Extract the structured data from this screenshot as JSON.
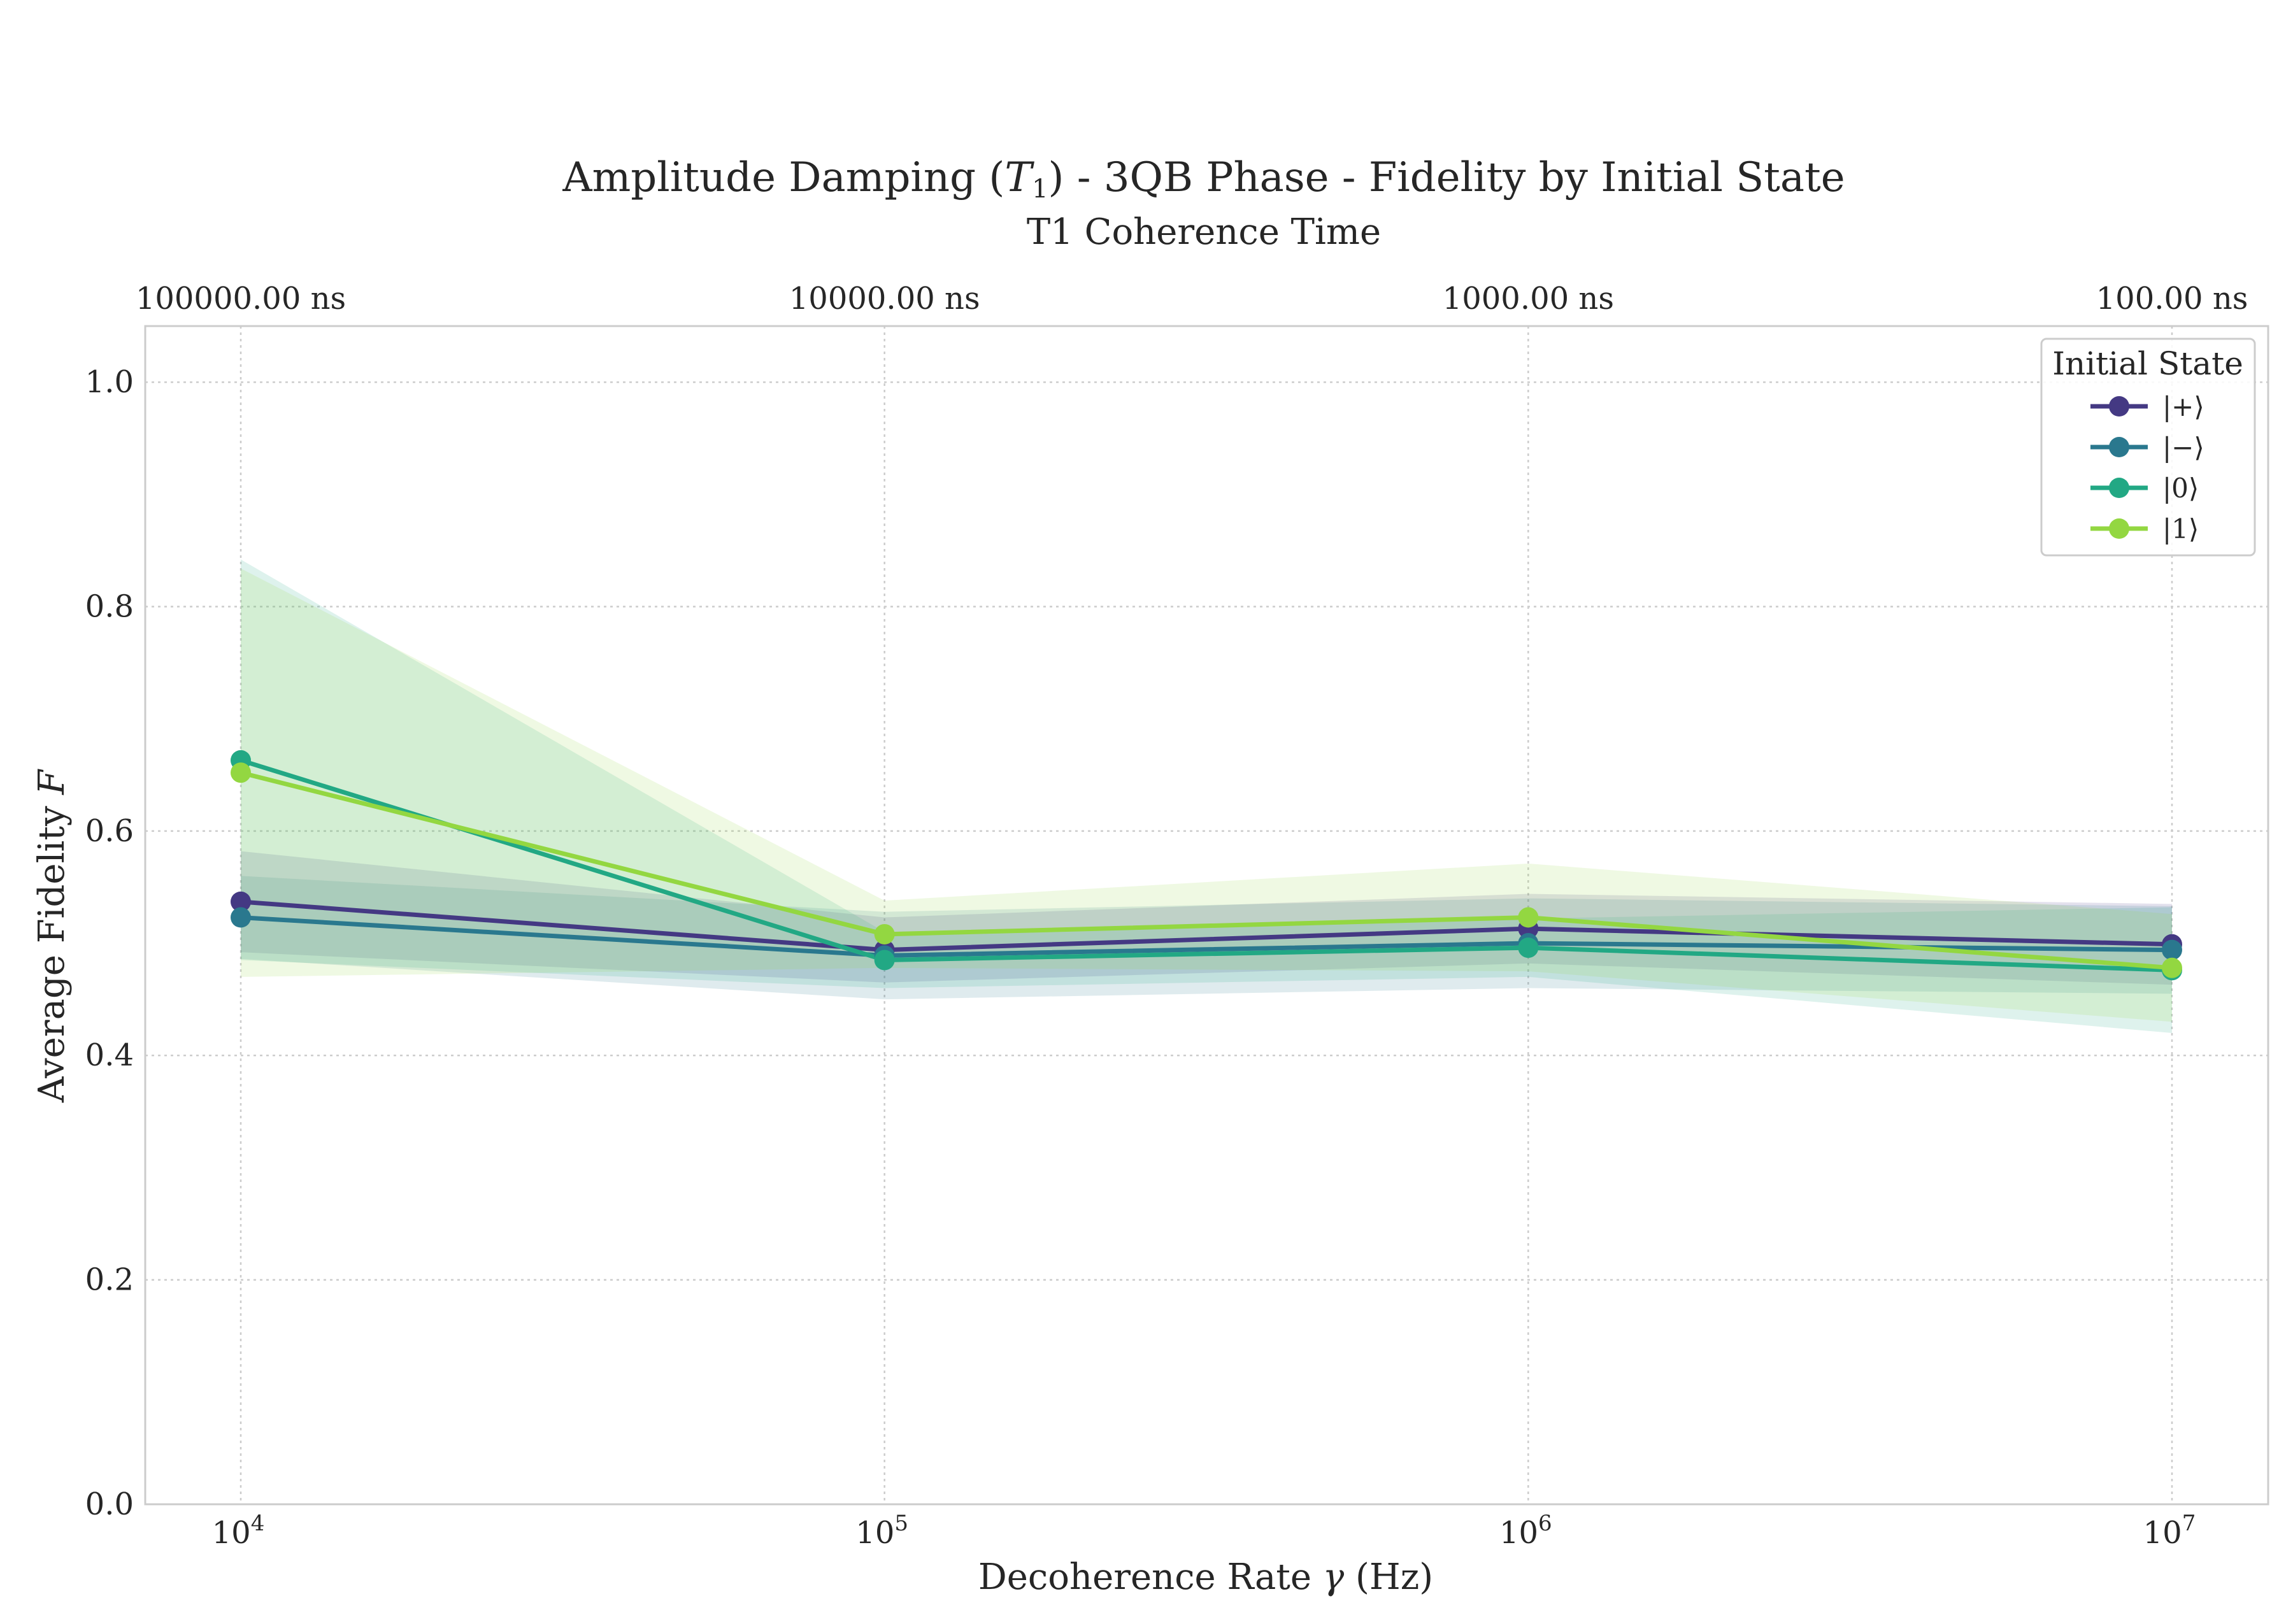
{
  "chart_data": {
    "type": "line",
    "title_main": "Amplitude Damping (",
    "title_sym": "T",
    "title_sub": "1",
    "title_rest": ") - 3QB Phase - Fidelity by Initial State",
    "subtitle": "T1 Coherence Time",
    "xlabel_main": "Decoherence Rate ",
    "xlabel_sym": "γ",
    "xlabel_rest": " (Hz)",
    "ylabel_main": "Average Fidelity ",
    "ylabel_sym": "F",
    "x_scale": "log",
    "x": [
      10000,
      100000,
      1000000,
      10000000
    ],
    "x_ticks": [
      {
        "base": "10",
        "exp": "4"
      },
      {
        "base": "10",
        "exp": "5"
      },
      {
        "base": "10",
        "exp": "6"
      },
      {
        "base": "10",
        "exp": "7"
      }
    ],
    "top_ticks": [
      "100000.00 ns",
      "10000.00 ns",
      "1000.00 ns",
      "100.00 ns"
    ],
    "ylim": [
      0.0,
      1.05
    ],
    "y_ticks": [
      "0.0",
      "0.2",
      "0.4",
      "0.6",
      "0.8",
      "1.0"
    ],
    "grid": true,
    "legend": {
      "title": "Initial State",
      "placement": "top-right"
    },
    "series": [
      {
        "name": "|+⟩",
        "color": "#443983",
        "values": [
          0.537,
          0.494,
          0.513,
          0.499
        ],
        "lower": [
          0.492,
          0.465,
          0.482,
          0.463
        ],
        "upper": [
          0.582,
          0.523,
          0.544,
          0.535
        ]
      },
      {
        "name": "|−⟩",
        "color": "#2a788e",
        "values": [
          0.523,
          0.489,
          0.5,
          0.494
        ],
        "lower": [
          0.486,
          0.45,
          0.46,
          0.455
        ],
        "upper": [
          0.56,
          0.528,
          0.54,
          0.533
        ]
      },
      {
        "name": "|0⟩",
        "color": "#22a884",
        "values": [
          0.663,
          0.485,
          0.496,
          0.476
        ],
        "lower": [
          0.485,
          0.46,
          0.47,
          0.42
        ],
        "upper": [
          0.842,
          0.51,
          0.522,
          0.532
        ]
      },
      {
        "name": "|1⟩",
        "color": "#93d741",
        "values": [
          0.652,
          0.508,
          0.523,
          0.478
        ],
        "lower": [
          0.47,
          0.478,
          0.475,
          0.43
        ],
        "upper": [
          0.834,
          0.538,
          0.571,
          0.526
        ]
      }
    ]
  }
}
